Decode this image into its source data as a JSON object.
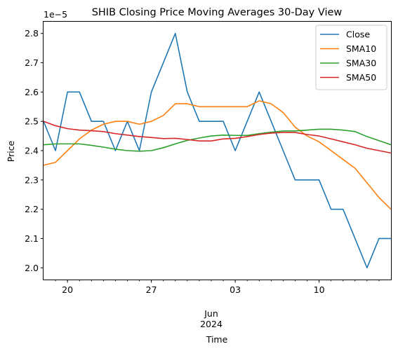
{
  "chart_data": {
    "type": "line",
    "title": "SHIB Closing Price Moving Averages 30-Day View",
    "xlabel": "Time",
    "ylabel": "Price",
    "y_multiplier_label": "1e−5",
    "ylim": [
      1.96,
      2.84
    ],
    "xlim": [
      0,
      29
    ],
    "grid": false,
    "legend_position": "upper right",
    "x_major_ticks": [
      {
        "x": 2,
        "label": "20"
      },
      {
        "x": 9,
        "label": "27"
      },
      {
        "x": 16,
        "label": "03"
      },
      {
        "x": 23,
        "label": "10"
      }
    ],
    "x_center_label": {
      "month": "Jun",
      "year": "2024"
    },
    "y_ticks": [
      2.0,
      2.1,
      2.2,
      2.3,
      2.4,
      2.5,
      2.6,
      2.7,
      2.8
    ],
    "x_dates": [
      "2024-05-18",
      "2024-05-19",
      "2024-05-20",
      "2024-05-21",
      "2024-05-22",
      "2024-05-23",
      "2024-05-24",
      "2024-05-25",
      "2024-05-26",
      "2024-05-27",
      "2024-05-28",
      "2024-05-29",
      "2024-05-30",
      "2024-05-31",
      "2024-06-01",
      "2024-06-02",
      "2024-06-03",
      "2024-06-04",
      "2024-06-05",
      "2024-06-06",
      "2024-06-07",
      "2024-06-08",
      "2024-06-09",
      "2024-06-10",
      "2024-06-11",
      "2024-06-12",
      "2024-06-13",
      "2024-06-14",
      "2024-06-15",
      "2024-06-16"
    ],
    "series": [
      {
        "name": "Close",
        "color": "#1f77b4",
        "values": [
          2.5,
          2.4,
          2.6,
          2.6,
          2.5,
          2.5,
          2.4,
          2.5,
          2.4,
          2.6,
          2.7,
          2.8,
          2.6,
          2.5,
          2.5,
          2.5,
          2.4,
          2.5,
          2.6,
          2.5,
          2.4,
          2.3,
          2.3,
          2.3,
          2.2,
          2.2,
          2.1,
          2.0,
          2.1,
          2.1
        ]
      },
      {
        "name": "SMA10",
        "color": "#ff7f0e",
        "values": [
          2.35,
          2.36,
          2.4,
          2.44,
          2.47,
          2.49,
          2.5,
          2.5,
          2.49,
          2.5,
          2.52,
          2.56,
          2.56,
          2.55,
          2.55,
          2.55,
          2.55,
          2.55,
          2.57,
          2.56,
          2.53,
          2.48,
          2.45,
          2.43,
          2.4,
          2.37,
          2.34,
          2.29,
          2.24,
          2.2
        ]
      },
      {
        "name": "SMA30",
        "color": "#2ca02c",
        "values": [
          2.42,
          2.423,
          2.423,
          2.423,
          2.418,
          2.412,
          2.405,
          2.4,
          2.398,
          2.4,
          2.41,
          2.423,
          2.435,
          2.443,
          2.45,
          2.453,
          2.452,
          2.452,
          2.458,
          2.463,
          2.467,
          2.467,
          2.47,
          2.473,
          2.473,
          2.47,
          2.465,
          2.448,
          2.434,
          2.42
        ]
      },
      {
        "name": "SMA50",
        "color": "#d62728",
        "values": [
          2.5,
          2.485,
          2.475,
          2.47,
          2.468,
          2.465,
          2.458,
          2.453,
          2.448,
          2.445,
          2.441,
          2.442,
          2.438,
          2.433,
          2.433,
          2.44,
          2.442,
          2.448,
          2.455,
          2.46,
          2.462,
          2.462,
          2.455,
          2.45,
          2.44,
          2.43,
          2.42,
          2.408,
          2.4,
          2.392
        ]
      }
    ]
  }
}
